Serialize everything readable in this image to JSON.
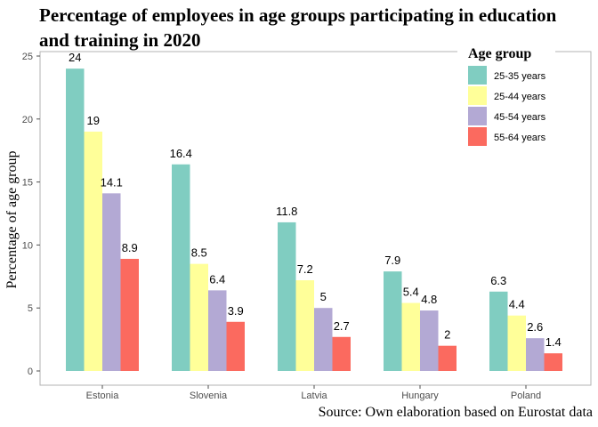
{
  "chart_data": {
    "type": "bar",
    "title": "Percentage of employees in age groups participating in education and training in 2020",
    "ylabel": "Percentage of age group",
    "xlabel": "",
    "ylim": [
      0,
      25
    ],
    "yticks": [
      0,
      5,
      10,
      15,
      20,
      25
    ],
    "categories": [
      "Estonia",
      "Slovenia",
      "Latvia",
      "Hungary",
      "Poland"
    ],
    "series": [
      {
        "name": "25-35 years",
        "color": "#80cdc1",
        "values": [
          24,
          16.4,
          11.8,
          7.9,
          6.3
        ]
      },
      {
        "name": "25-44 years",
        "color": "#ffff99",
        "values": [
          19,
          8.5,
          7.2,
          5.4,
          4.4
        ]
      },
      {
        "name": "45-54 years",
        "color": "#b3a9d4",
        "values": [
          14.1,
          6.4,
          5,
          4.8,
          2.6
        ]
      },
      {
        "name": "55-64 years",
        "color": "#fb6a5f",
        "values": [
          8.9,
          3.9,
          2.7,
          2,
          1.4
        ]
      }
    ],
    "legend": {
      "title": "Age group",
      "position": "top-right"
    },
    "grid": false,
    "caption": "Source: Own elaboration based on Eurostat data"
  }
}
